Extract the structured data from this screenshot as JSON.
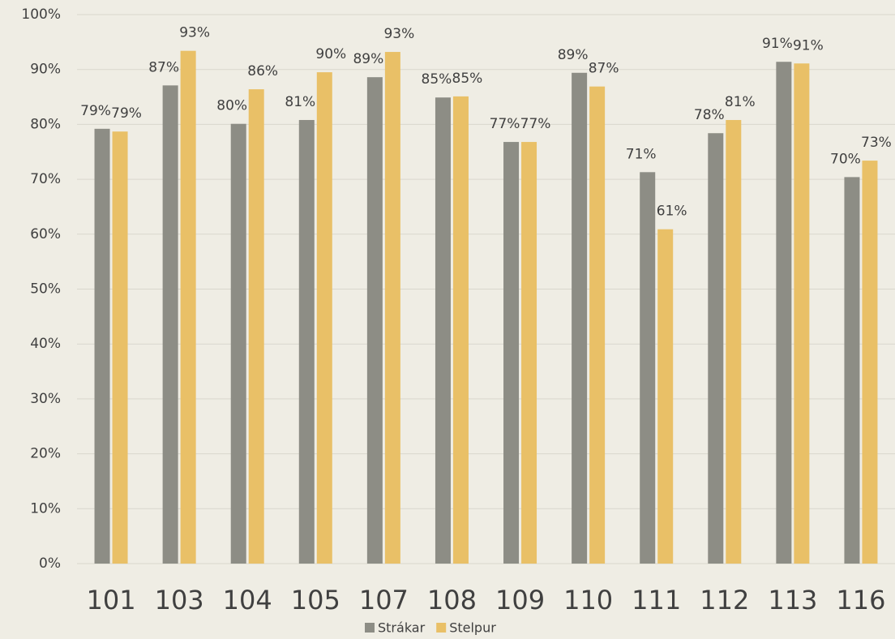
{
  "chart_data": {
    "type": "bar",
    "categories": [
      "101",
      "103",
      "104",
      "105",
      "107",
      "108",
      "109",
      "110",
      "111",
      "112",
      "113",
      "116"
    ],
    "series": [
      {
        "name": "Strákar",
        "color": "#8d8d85",
        "values": [
          79.2,
          87.1,
          80.1,
          80.8,
          88.6,
          84.9,
          76.8,
          89.4,
          71.3,
          78.4,
          91.4,
          70.4
        ],
        "value_labels": [
          "79%",
          "87%",
          "80%",
          "81%",
          "89%",
          "85%",
          "77%",
          "89%",
          "71%",
          "78%",
          "91%",
          "70%"
        ]
      },
      {
        "name": "Stelpur",
        "color": "#e9c067",
        "values": [
          78.7,
          93.4,
          86.4,
          89.5,
          93.2,
          85.1,
          76.8,
          86.9,
          60.9,
          80.8,
          91.1,
          73.4
        ],
        "value_labels": [
          "79%",
          "93%",
          "86%",
          "90%",
          "93%",
          "85%",
          "77%",
          "87%",
          "61%",
          "81%",
          "91%",
          "73%"
        ]
      }
    ],
    "ylim": [
      0,
      100
    ],
    "yticks": [
      {
        "value": 0,
        "label": "0%"
      },
      {
        "value": 10,
        "label": "10%"
      },
      {
        "value": 20,
        "label": "20%"
      },
      {
        "value": 30,
        "label": "30%"
      },
      {
        "value": 40,
        "label": "40%"
      },
      {
        "value": 50,
        "label": "50%"
      },
      {
        "value": 60,
        "label": "60%"
      },
      {
        "value": 70,
        "label": "70%"
      },
      {
        "value": 80,
        "label": "80%"
      },
      {
        "value": 90,
        "label": "90%"
      },
      {
        "value": 100,
        "label": "100%"
      }
    ],
    "grid": true,
    "legend": "bottom"
  }
}
